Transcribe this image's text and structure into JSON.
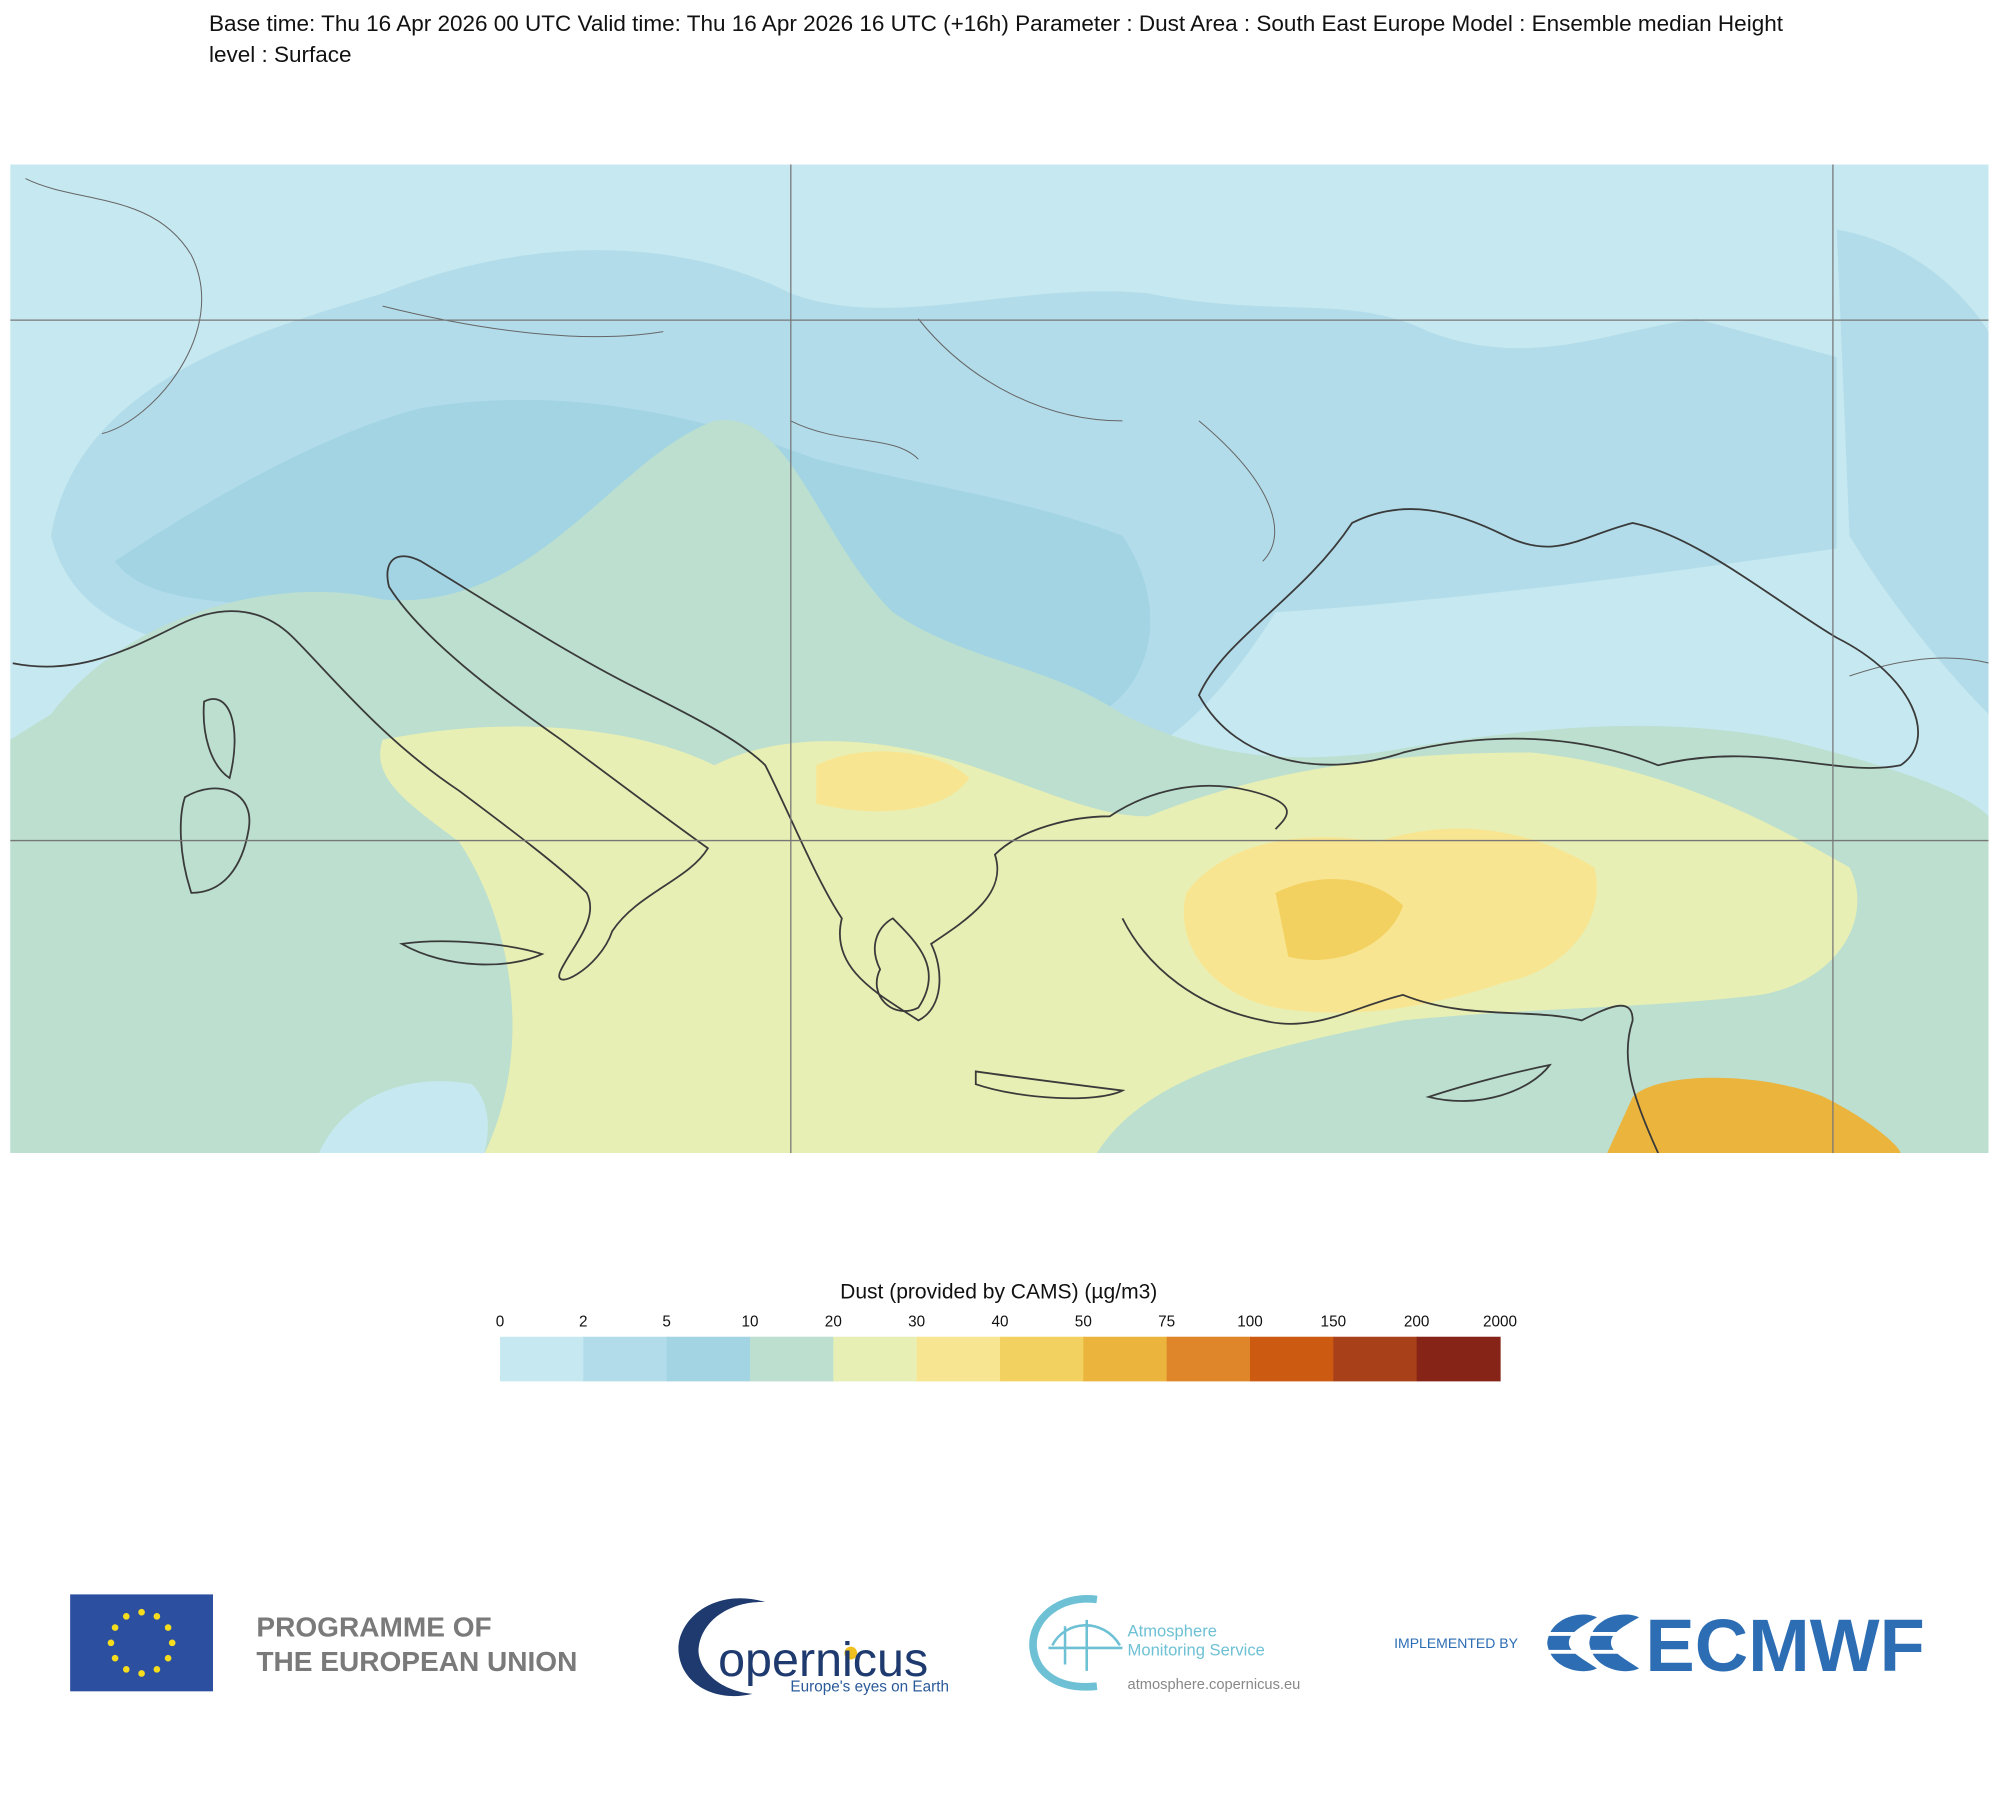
{
  "header": {
    "title": "Base time: Thu 16 Apr 2026 00 UTC Valid time: Thu 16 Apr 2026 16 UTC (+16h) Parameter : Dust Area : South East Europe Model : Ensemble median Height level : Surface"
  },
  "legend": {
    "title": "Dust (provided by CAMS) (µg/m3)",
    "ticks": [
      0,
      2,
      5,
      10,
      20,
      30,
      40,
      50,
      75,
      100,
      150,
      200,
      2000
    ],
    "colors": [
      "#c6e8f0",
      "#b2dcea",
      "#a2d4e3",
      "#bcdfcf",
      "#e8efb4",
      "#f8e591",
      "#f3d160",
      "#eab43d",
      "#e0862a",
      "#cc5a10",
      "#a8401a",
      "#862418"
    ]
  },
  "footer": {
    "eu": {
      "lines": [
        "PROGRAMME OF",
        "THE EUROPEAN UNION"
      ]
    },
    "copernicus": {
      "name": "opernicus",
      "tagline": "Europe's eyes on Earth"
    },
    "ams": {
      "lines": [
        "Atmosphere",
        "Monitoring Service"
      ],
      "url": "atmosphere.copernicus.eu"
    },
    "ecmwf": {
      "prefix": "IMPLEMENTED BY",
      "name": "ECMWF"
    }
  }
}
